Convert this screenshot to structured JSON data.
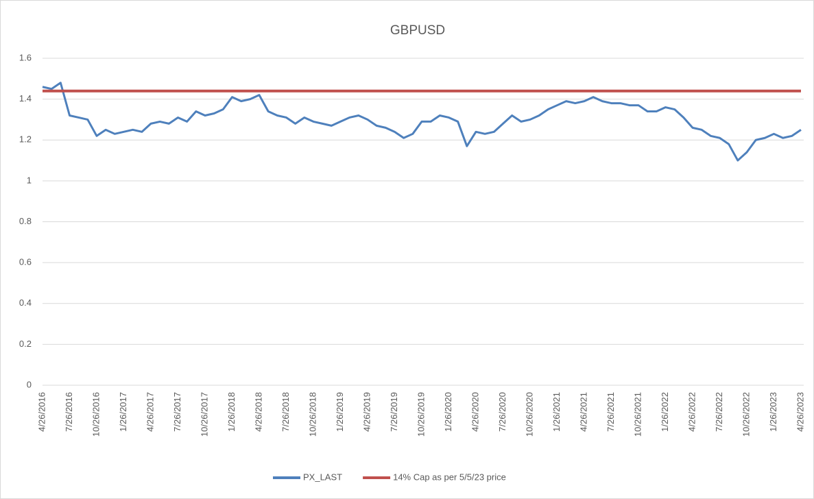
{
  "chart_data": {
    "type": "line",
    "title": "GBPUSD",
    "categories": [
      "4/26/2016",
      null,
      null,
      "7/26/2016",
      null,
      null,
      "10/26/2016",
      null,
      null,
      "1/26/2017",
      null,
      null,
      "4/26/2017",
      null,
      null,
      "7/26/2017",
      null,
      null,
      "10/26/2017",
      null,
      null,
      "1/26/2018",
      null,
      null,
      "4/26/2018",
      null,
      null,
      "7/26/2018",
      null,
      null,
      "10/26/2018",
      null,
      null,
      "1/26/2019",
      null,
      null,
      "4/26/2019",
      null,
      null,
      "7/26/2019",
      null,
      null,
      "10/26/2019",
      null,
      null,
      "1/26/2020",
      null,
      null,
      "4/26/2020",
      null,
      null,
      "7/26/2020",
      null,
      null,
      "10/26/2020",
      null,
      null,
      "1/26/2021",
      null,
      null,
      "4/26/2021",
      null,
      null,
      "7/26/2021",
      null,
      null,
      "10/26/2021",
      null,
      null,
      "1/26/2022",
      null,
      null,
      "4/26/2022",
      null,
      null,
      "7/26/2022",
      null,
      null,
      "10/26/2022",
      null,
      null,
      "1/26/2023",
      null,
      null,
      "4/26/2023"
    ],
    "series": [
      {
        "name": "PX_LAST",
        "color": "#4e80bc",
        "values": [
          1.46,
          1.45,
          1.48,
          1.32,
          1.31,
          1.3,
          1.22,
          1.25,
          1.23,
          1.24,
          1.25,
          1.24,
          1.28,
          1.29,
          1.28,
          1.31,
          1.29,
          1.34,
          1.32,
          1.33,
          1.35,
          1.41,
          1.39,
          1.4,
          1.42,
          1.34,
          1.32,
          1.31,
          1.28,
          1.31,
          1.29,
          1.28,
          1.27,
          1.29,
          1.31,
          1.32,
          1.3,
          1.27,
          1.26,
          1.24,
          1.21,
          1.23,
          1.29,
          1.29,
          1.32,
          1.31,
          1.29,
          1.17,
          1.24,
          1.23,
          1.24,
          1.28,
          1.32,
          1.29,
          1.3,
          1.32,
          1.35,
          1.37,
          1.39,
          1.38,
          1.39,
          1.41,
          1.39,
          1.38,
          1.38,
          1.37,
          1.37,
          1.34,
          1.34,
          1.36,
          1.35,
          1.31,
          1.26,
          1.25,
          1.22,
          1.21,
          1.18,
          1.1,
          1.14,
          1.2,
          1.21,
          1.23,
          1.21,
          1.22,
          1.25
        ]
      },
      {
        "name": "14% Cap as per 5/5/23 price",
        "color": "#c0504d",
        "values": [
          1.44,
          1.44,
          1.44,
          1.44,
          1.44,
          1.44,
          1.44,
          1.44,
          1.44,
          1.44,
          1.44,
          1.44,
          1.44,
          1.44,
          1.44,
          1.44,
          1.44,
          1.44,
          1.44,
          1.44,
          1.44,
          1.44,
          1.44,
          1.44,
          1.44,
          1.44,
          1.44,
          1.44,
          1.44,
          1.44,
          1.44,
          1.44,
          1.44,
          1.44,
          1.44,
          1.44,
          1.44,
          1.44,
          1.44,
          1.44,
          1.44,
          1.44,
          1.44,
          1.44,
          1.44,
          1.44,
          1.44,
          1.44,
          1.44,
          1.44,
          1.44,
          1.44,
          1.44,
          1.44,
          1.44,
          1.44,
          1.44,
          1.44,
          1.44,
          1.44,
          1.44,
          1.44,
          1.44,
          1.44,
          1.44,
          1.44,
          1.44,
          1.44,
          1.44,
          1.44,
          1.44,
          1.44,
          1.44,
          1.44,
          1.44,
          1.44,
          1.44,
          1.44,
          1.44,
          1.44,
          1.44,
          1.44,
          1.44,
          1.44,
          1.44
        ]
      }
    ],
    "ylim": [
      0,
      1.6
    ],
    "yticks": [
      0,
      0.2,
      0.4,
      0.6,
      0.8,
      1,
      1.2,
      1.4,
      1.6
    ],
    "grid": true,
    "legend": "bottom"
  }
}
